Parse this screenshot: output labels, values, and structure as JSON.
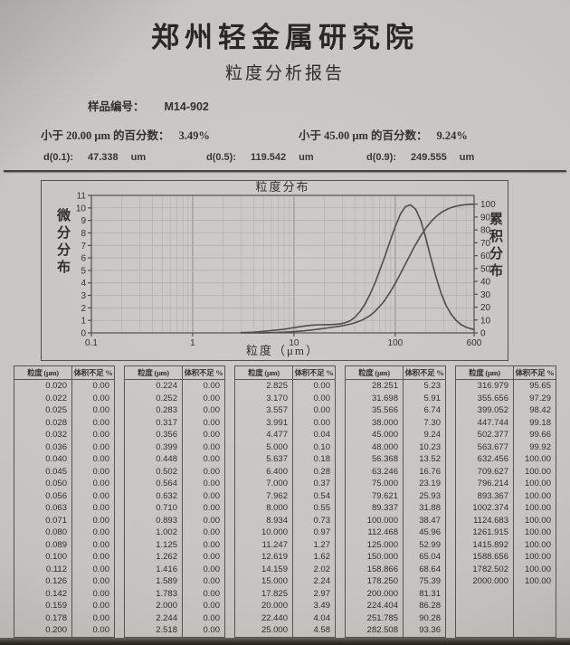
{
  "page": {
    "org_title": "郑州轻金属研究院",
    "report_title": "粒度分析报告",
    "sample": {
      "label": "样品编号：",
      "value": "M14-902"
    },
    "percentiles": [
      {
        "label": "小于 20.00 μm 的百分数：",
        "value": "3.49%"
      },
      {
        "label": "小于 45.00 μm 的百分数：",
        "value": "9.24%"
      }
    ],
    "d_values": [
      {
        "label": "d(0.1):",
        "value": "47.338",
        "unit": "um"
      },
      {
        "label": "d(0.5):",
        "value": "119.542",
        "unit": "um"
      },
      {
        "label": "d(0.9):",
        "value": "249.555",
        "unit": "um"
      }
    ]
  },
  "colors": {
    "paper": "#c6c4c0",
    "ink": "#2e2c29",
    "curve": "#4b4742",
    "grid_minor": "#b3b0ab",
    "grid_major": "#8d8a85",
    "frame": "#4e4a45"
  },
  "chart_data": {
    "type": "line",
    "title": "粒度分布",
    "xlabel": "粒度（μm）",
    "ylabel_left": "微分分布",
    "ylabel_right": "累积分布",
    "x_scale": "log",
    "xlim": [
      0.1,
      600
    ],
    "ylim_left": [
      0,
      11
    ],
    "ylim_right": [
      0,
      100
    ],
    "x_ticks": [
      0.1,
      1,
      10,
      100,
      600
    ],
    "y_ticks_left": [
      0,
      1,
      2,
      3,
      4,
      5,
      6,
      7,
      8,
      9,
      10,
      11
    ],
    "y_ticks_right": [
      0,
      10,
      20,
      30,
      40,
      50,
      60,
      70,
      80,
      90,
      100
    ],
    "grid": true,
    "legend": "none",
    "right_axis_top_at_left_units": 10.3,
    "series": [
      {
        "key": "differential",
        "name": "微分分布",
        "axis": "left",
        "color": "#4b4742",
        "points": [
          [
            3,
            0.02
          ],
          [
            4,
            0.06
          ],
          [
            5,
            0.12
          ],
          [
            6.3,
            0.2
          ],
          [
            8,
            0.3
          ],
          [
            10,
            0.42
          ],
          [
            12.6,
            0.55
          ],
          [
            15,
            0.62
          ],
          [
            17.8,
            0.65
          ],
          [
            20,
            0.66
          ],
          [
            22.4,
            0.66
          ],
          [
            25.2,
            0.68
          ],
          [
            28.3,
            0.72
          ],
          [
            31.7,
            0.8
          ],
          [
            35.6,
            0.95
          ],
          [
            40,
            1.25
          ],
          [
            44.8,
            1.7
          ],
          [
            50.2,
            2.3
          ],
          [
            56.4,
            3.1
          ],
          [
            63.2,
            4.0
          ],
          [
            71,
            5.1
          ],
          [
            79.6,
            6.2
          ],
          [
            89.3,
            7.4
          ],
          [
            100,
            8.5
          ],
          [
            112.5,
            9.5
          ],
          [
            126,
            10.1
          ],
          [
            141,
            10.25
          ],
          [
            158.9,
            9.9
          ],
          [
            178.3,
            9.0
          ],
          [
            200,
            7.6
          ],
          [
            224.4,
            6.0
          ],
          [
            251.8,
            4.5
          ],
          [
            282.5,
            3.2
          ],
          [
            317,
            2.2
          ],
          [
            355.7,
            1.5
          ],
          [
            399.1,
            1.0
          ],
          [
            447.7,
            0.65
          ],
          [
            502.4,
            0.45
          ],
          [
            563.7,
            0.32
          ],
          [
            600,
            0.28
          ]
        ]
      },
      {
        "key": "cumulative",
        "name": "累积分布",
        "axis": "right",
        "color": "#4b4742",
        "points": [
          [
            3,
            0
          ],
          [
            5,
            0.1
          ],
          [
            7,
            0.37
          ],
          [
            8,
            0.55
          ],
          [
            10,
            0.97
          ],
          [
            12.619,
            1.62
          ],
          [
            15,
            2.24
          ],
          [
            20,
            3.49
          ],
          [
            25,
            4.58
          ],
          [
            28.251,
            5.23
          ],
          [
            31.698,
            5.91
          ],
          [
            35.566,
            6.74
          ],
          [
            38,
            7.3
          ],
          [
            45,
            9.24
          ],
          [
            48,
            10.23
          ],
          [
            56.368,
            13.52
          ],
          [
            63.246,
            16.76
          ],
          [
            75,
            23.19
          ],
          [
            79.621,
            25.93
          ],
          [
            89.337,
            31.88
          ],
          [
            100,
            38.47
          ],
          [
            112.468,
            45.96
          ],
          [
            125,
            52.99
          ],
          [
            150,
            65.04
          ],
          [
            158.866,
            68.64
          ],
          [
            178.25,
            75.39
          ],
          [
            200,
            81.31
          ],
          [
            224.404,
            86.28
          ],
          [
            251.785,
            90.28
          ],
          [
            282.508,
            93.36
          ],
          [
            316.979,
            95.65
          ],
          [
            355.656,
            97.29
          ],
          [
            399.052,
            98.42
          ],
          [
            447.744,
            99.18
          ],
          [
            502.377,
            99.66
          ],
          [
            563.677,
            99.92
          ],
          [
            600,
            100
          ]
        ]
      }
    ]
  },
  "table": {
    "headers": [
      "粒度 (μm)",
      "体积不足 %"
    ],
    "groups": [
      {
        "rows": [
          [
            "0.020",
            "0.00"
          ],
          [
            "0.022",
            "0.00"
          ],
          [
            "0.025",
            "0.00"
          ],
          [
            "0.028",
            "0.00"
          ],
          [
            "0.032",
            "0.00"
          ],
          [
            "0.036",
            "0.00"
          ],
          [
            "0.040",
            "0.00"
          ],
          [
            "0.045",
            "0.00"
          ],
          [
            "0.050",
            "0.00"
          ],
          [
            "0.056",
            "0.00"
          ],
          [
            "0.063",
            "0.00"
          ],
          [
            "0.071",
            "0.00"
          ],
          [
            "0.080",
            "0.00"
          ],
          [
            "0.089",
            "0.00"
          ],
          [
            "0.100",
            "0.00"
          ],
          [
            "0.112",
            "0.00"
          ],
          [
            "0.126",
            "0.00"
          ],
          [
            "0.142",
            "0.00"
          ],
          [
            "0.159",
            "0.00"
          ],
          [
            "0.178",
            "0.00"
          ],
          [
            "0.200",
            "0.00"
          ]
        ]
      },
      {
        "rows": [
          [
            "0.224",
            "0.00"
          ],
          [
            "0.252",
            "0.00"
          ],
          [
            "0.283",
            "0.00"
          ],
          [
            "0.317",
            "0.00"
          ],
          [
            "0.356",
            "0.00"
          ],
          [
            "0.399",
            "0.00"
          ],
          [
            "0.448",
            "0.00"
          ],
          [
            "0.502",
            "0.00"
          ],
          [
            "0.564",
            "0.00"
          ],
          [
            "0.632",
            "0.00"
          ],
          [
            "0.710",
            "0.00"
          ],
          [
            "0.893",
            "0.00"
          ],
          [
            "1.002",
            "0.00"
          ],
          [
            "1.125",
            "0.00"
          ],
          [
            "1.262",
            "0.00"
          ],
          [
            "1.416",
            "0.00"
          ],
          [
            "1.589",
            "0.00"
          ],
          [
            "1.783",
            "0.00"
          ],
          [
            "2.000",
            "0.00"
          ],
          [
            "2.244",
            "0.00"
          ],
          [
            "2.518",
            "0.00"
          ]
        ]
      },
      {
        "rows": [
          [
            "2.825",
            "0.00"
          ],
          [
            "3.170",
            "0.00"
          ],
          [
            "3.557",
            "0.00"
          ],
          [
            "3.991",
            "0.00"
          ],
          [
            "4.477",
            "0.04"
          ],
          [
            "5.000",
            "0.10"
          ],
          [
            "5.637",
            "0.18"
          ],
          [
            "6.400",
            "0.28"
          ],
          [
            "7.000",
            "0.37"
          ],
          [
            "7.962",
            "0.54"
          ],
          [
            "8.000",
            "0.55"
          ],
          [
            "8.934",
            "0.73"
          ],
          [
            "10.000",
            "0.97"
          ],
          [
            "11.247",
            "1.27"
          ],
          [
            "12.619",
            "1.62"
          ],
          [
            "14.159",
            "2.02"
          ],
          [
            "15.000",
            "2.24"
          ],
          [
            "17.825",
            "2.97"
          ],
          [
            "20.000",
            "3.49"
          ],
          [
            "22.440",
            "4.04"
          ],
          [
            "25.000",
            "4.58"
          ]
        ]
      },
      {
        "rows": [
          [
            "28.251",
            "5.23"
          ],
          [
            "31.698",
            "5.91"
          ],
          [
            "35.566",
            "6.74"
          ],
          [
            "38.000",
            "7.30"
          ],
          [
            "45.000",
            "9.24"
          ],
          [
            "48.000",
            "10.23"
          ],
          [
            "56.368",
            "13.52"
          ],
          [
            "63.246",
            "16.76"
          ],
          [
            "75.000",
            "23.19"
          ],
          [
            "79.621",
            "25.93"
          ],
          [
            "89.337",
            "31.88"
          ],
          [
            "100.000",
            "38.47"
          ],
          [
            "112.468",
            "45.96"
          ],
          [
            "125.000",
            "52.99"
          ],
          [
            "150.000",
            "65.04"
          ],
          [
            "158.866",
            "68.64"
          ],
          [
            "178.250",
            "75.39"
          ],
          [
            "200.000",
            "81.31"
          ],
          [
            "224.404",
            "86.28"
          ],
          [
            "251.785",
            "90.28"
          ],
          [
            "282.508",
            "93.36"
          ]
        ]
      },
      {
        "rows": [
          [
            "316.979",
            "95.65"
          ],
          [
            "355.656",
            "97.29"
          ],
          [
            "399.052",
            "98.42"
          ],
          [
            "447.744",
            "99.18"
          ],
          [
            "502.377",
            "99.66"
          ],
          [
            "563.677",
            "99.92"
          ],
          [
            "632.456",
            "100.00"
          ],
          [
            "709.627",
            "100.00"
          ],
          [
            "796.214",
            "100.00"
          ],
          [
            "893.367",
            "100.00"
          ],
          [
            "1002.374",
            "100.00"
          ],
          [
            "1124.683",
            "100.00"
          ],
          [
            "1261.915",
            "100.00"
          ],
          [
            "1415.892",
            "100.00"
          ],
          [
            "1588.656",
            "100.00"
          ],
          [
            "1782.502",
            "100.00"
          ],
          [
            "2000.000",
            "100.00"
          ],
          [
            "",
            ""
          ],
          [
            "",
            ""
          ],
          [
            "",
            ""
          ],
          [
            "",
            ""
          ]
        ]
      }
    ]
  }
}
